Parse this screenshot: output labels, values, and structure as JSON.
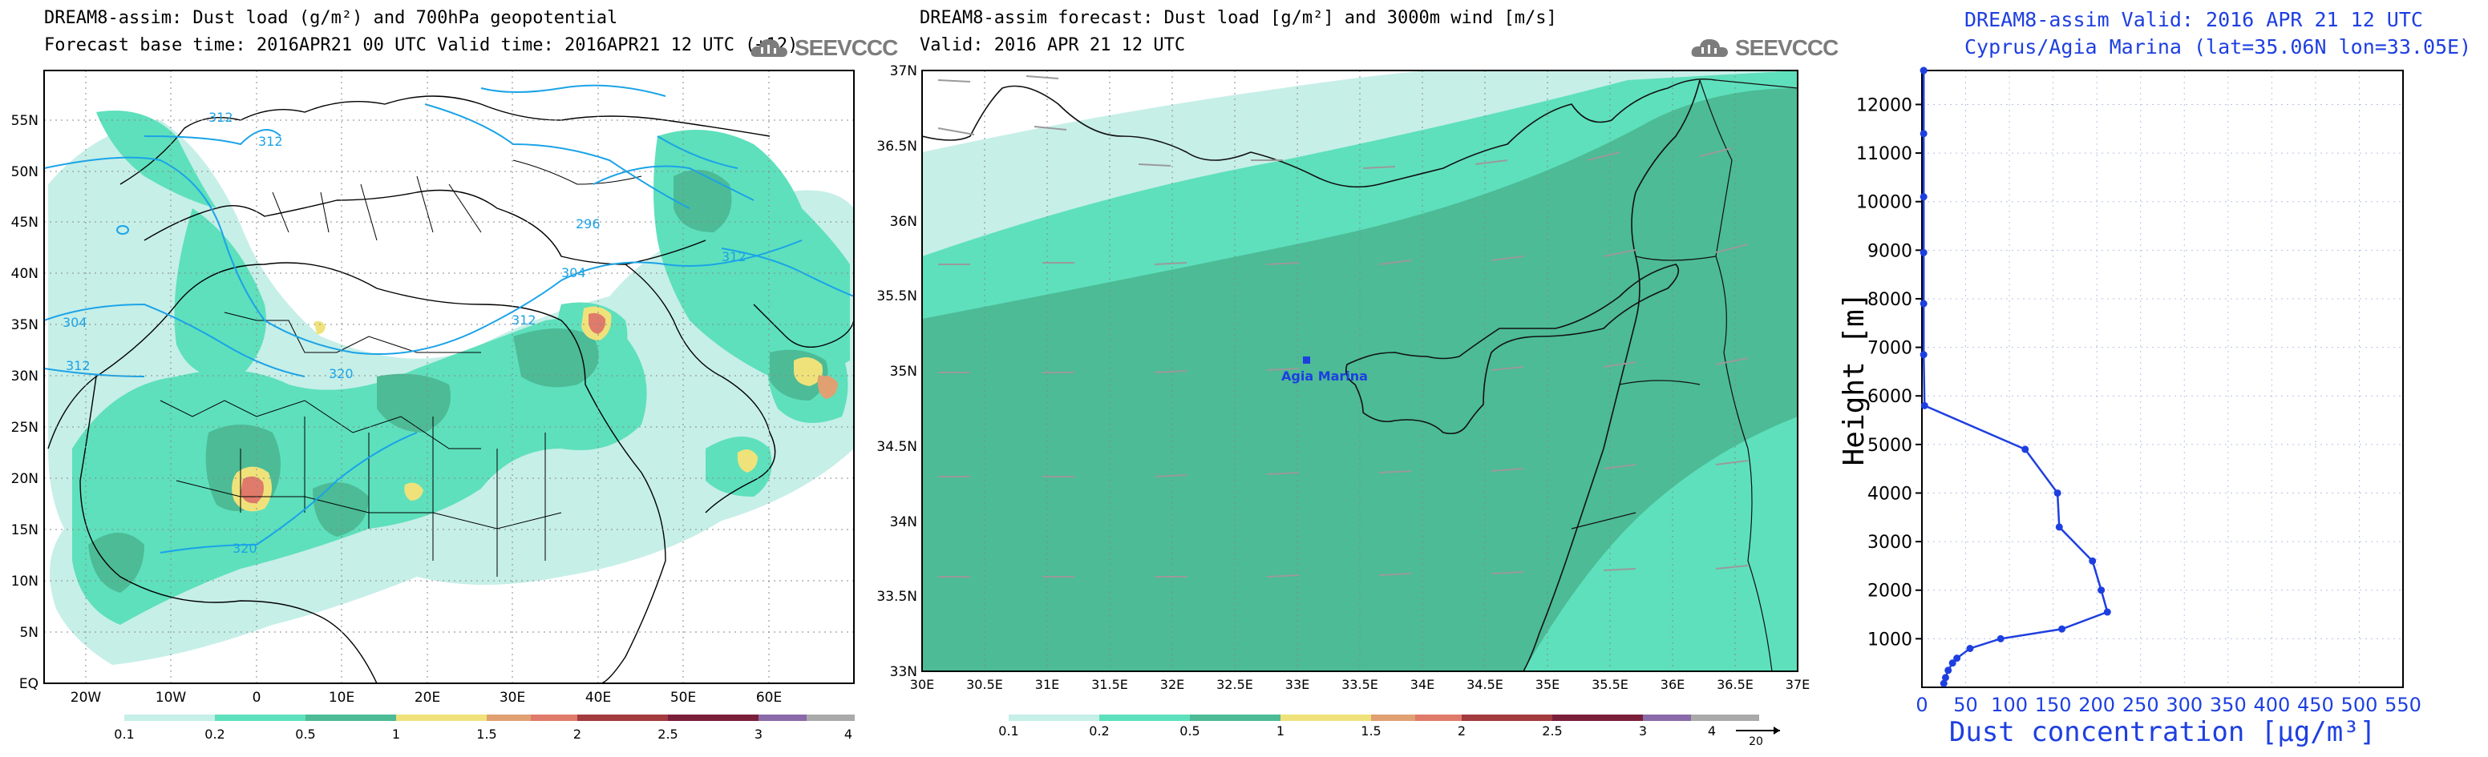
{
  "left_panel": {
    "title": "DREAM8-assim: Dust load (g/m²) and 700hPa geopotential",
    "subtitle": "Forecast base time: 2016APR21 00 UTC  Valid time: 2016APR21 12 UTC  (+12)",
    "logo": "SEEVCCC",
    "lat_labels": [
      "55N",
      "50N",
      "45N",
      "40N",
      "35N",
      "30N",
      "25N",
      "20N",
      "15N",
      "10N",
      "5N",
      "EQ"
    ],
    "lon_labels": [
      "20W",
      "10W",
      "0",
      "10E",
      "20E",
      "30E",
      "40E",
      "50E",
      "60E"
    ],
    "contour_labels": [
      "312",
      "312",
      "304",
      "304",
      "296",
      "312",
      "320",
      "312",
      "312",
      "320"
    ],
    "colorbar_labels": [
      "0.1",
      "0.2",
      "0.5",
      "1",
      "1.5",
      "2",
      "2.5",
      "3",
      "4"
    ]
  },
  "mid_panel": {
    "title": "DREAM8-assim forecast: Dust load [g/m²] and 3000m wind [m/s]",
    "subtitle": "Valid: 2016 APR 21  12 UTC",
    "logo": "SEEVCCC",
    "station": "Agia Marina",
    "lat_labels": [
      "37N",
      "36.5N",
      "36N",
      "35.5N",
      "35N",
      "34.5N",
      "34N",
      "33.5N",
      "33N"
    ],
    "lon_labels": [
      "30E",
      "30.5E",
      "31E",
      "31.5E",
      "32E",
      "32.5E",
      "33E",
      "33.5E",
      "34E",
      "34.5E",
      "35E",
      "35.5E",
      "36E",
      "36.5E",
      "37E"
    ],
    "colorbar_labels": [
      "0.1",
      "0.2",
      "0.5",
      "1",
      "1.5",
      "2",
      "2.5",
      "3",
      "4"
    ],
    "wind_ref": "20"
  },
  "colors": {
    "c_01": "#c6efe8",
    "c_02": "#5ee0bc",
    "c_05": "#4cbb96",
    "c_1": "#f0e27a",
    "c_15": "#e0a072",
    "c_2": "#e07a6a",
    "c_25": "#a23a3e",
    "c_3": "#7a1f3a",
    "c_35": "#8a6aa8",
    "c_4": "#aaaaaa",
    "contour": "#1aa3e8",
    "profile": "#1e3fe0"
  },
  "chart_data": {
    "type": "line",
    "title": "DREAM8-assim   Valid: 2016 APR 21   12 UTC",
    "subtitle": "Cyprus/Agia Marina (lat=35.06N lon=33.05E)",
    "xlabel": "Dust concentration [μg/m³]",
    "ylabel": "Height [m]",
    "xlim": [
      0,
      550
    ],
    "ylim": [
      0,
      12700
    ],
    "x_ticks": [
      "0",
      "50",
      "100",
      "150",
      "200",
      "250",
      "300",
      "350",
      "400",
      "450",
      "500",
      "550"
    ],
    "y_ticks": [
      "1000",
      "2000",
      "3000",
      "4000",
      "5000",
      "6000",
      "7000",
      "8000",
      "9000",
      "10000",
      "11000",
      "12000"
    ],
    "series": [
      {
        "x": [
          25,
          27,
          30,
          35,
          40,
          55,
          90,
          160,
          212,
          205,
          195,
          157,
          155,
          118,
          3,
          2,
          2,
          2,
          2,
          2,
          2,
          2
        ],
        "y": [
          80,
          200,
          350,
          500,
          600,
          800,
          1000,
          1200,
          1550,
          2000,
          2600,
          3300,
          4000,
          4900,
          5800,
          6850,
          7900,
          8950,
          10100,
          11400,
          12700,
          12700
        ]
      }
    ]
  }
}
